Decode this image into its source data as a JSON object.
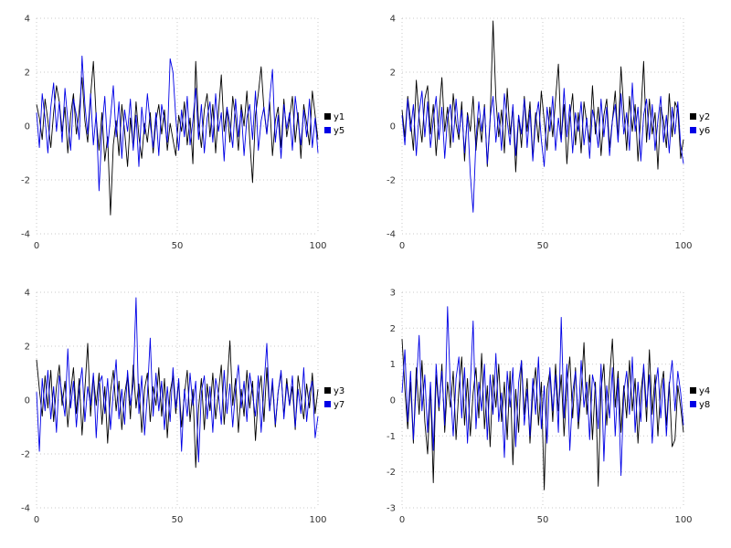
{
  "page": {
    "background": "#ffffff",
    "grid_color": "#c9c9c9",
    "tick_color": "#333333"
  },
  "chart_data": [
    {
      "type": "line",
      "xlim": [
        0,
        100
      ],
      "ylim": [
        -4,
        4
      ],
      "xticks": [
        0,
        50,
        100
      ],
      "yticks": [
        -4,
        -2,
        0,
        2,
        4
      ],
      "grid": true,
      "legend_position": "right",
      "series": [
        {
          "name": "y1",
          "color": "#000000",
          "values": [
            0.8,
            0.3,
            -0.5,
            1.0,
            0.2,
            -0.8,
            0.5,
            1.5,
            0.9,
            -0.2,
            0.7,
            -1.0,
            0.4,
            1.2,
            -0.3,
            0.6,
            1.8,
            0.2,
            -0.6,
            1.1,
            2.4,
            0.3,
            -0.9,
            0.5,
            -1.3,
            -0.4,
            -3.3,
            -0.7,
            0.2,
            -1.1,
            0.8,
            -0.2,
            -1.5,
            0.3,
            -0.8,
            0.9,
            -0.4,
            -1.2,
            0.1,
            -0.6,
            0.5,
            -1.0,
            0.2,
            0.8,
            -0.3,
            0.6,
            -0.9,
            0.1,
            -0.5,
            -1.1,
            0.4,
            -0.2,
            0.9,
            -0.7,
            0.3,
            -1.4,
            2.4,
            0.1,
            -0.8,
            0.6,
            1.2,
            -0.4,
            0.8,
            -1.0,
            0.5,
            1.9,
            -0.2,
            0.7,
            -0.6,
            1.1,
            0.3,
            -0.9,
            0.8,
            0.0,
            1.3,
            -0.5,
            -2.1,
            0.4,
            1.2,
            2.2,
            0.6,
            -0.3,
            0.9,
            -1.1,
            0.2,
            0.7,
            -0.8,
            1.0,
            -0.4,
            0.3,
            1.1,
            -0.6,
            0.5,
            -1.2,
            0.8,
            0.1,
            -0.7,
            1.3,
            0.4,
            -0.5
          ]
        },
        {
          "name": "y5",
          "color": "#0000e6",
          "values": [
            0.5,
            -0.8,
            1.2,
            0.3,
            -1.0,
            0.7,
            1.6,
            -0.2,
            0.9,
            -0.6,
            1.4,
            0.2,
            -0.9,
            1.0,
            0.4,
            -0.5,
            2.6,
            0.8,
            -0.3,
            1.2,
            -0.7,
            0.5,
            -2.4,
            -0.1,
            1.1,
            -0.8,
            0.3,
            1.5,
            -0.4,
            0.9,
            -1.2,
            0.6,
            -0.2,
            1.0,
            -0.9,
            0.4,
            -1.5,
            0.7,
            -0.3,
            1.2,
            0.1,
            -0.8,
            0.5,
            -1.1,
            0.8,
            0.2,
            -0.6,
            2.5,
            2.0,
            0.3,
            -0.9,
            0.6,
            -0.4,
            1.1,
            -0.7,
            0.2,
            1.4,
            -0.5,
            0.8,
            -1.0,
            0.3,
            0.9,
            -0.6,
            1.2,
            -0.2,
            0.5,
            -1.3,
            0.7,
            0.1,
            -0.8,
            1.0,
            -0.4,
            0.6,
            -1.1,
            0.3,
            0.8,
            -0.5,
            1.3,
            -0.9,
            0.2,
            0.7,
            -0.3,
            1.0,
            2.1,
            -0.6,
            0.4,
            -1.2,
            0.8,
            -0.1,
            0.5,
            -0.9,
            1.1,
            0.2,
            -0.7,
            0.6,
            -0.4,
            1.0,
            -0.8,
            0.3,
            -1.0
          ]
        }
      ]
    },
    {
      "type": "line",
      "xlim": [
        0,
        100
      ],
      "ylim": [
        -4,
        4
      ],
      "xticks": [
        0,
        50,
        100
      ],
      "yticks": [
        -4,
        -2,
        0,
        2,
        4
      ],
      "grid": true,
      "legend_position": "right",
      "series": [
        {
          "name": "y2",
          "color": "#000000",
          "values": [
            0.6,
            -0.4,
            1.1,
            0.2,
            -0.9,
            1.7,
            0.3,
            -0.6,
            1.0,
            1.5,
            -0.3,
            0.8,
            -1.1,
            0.4,
            1.8,
            -0.2,
            0.7,
            -0.8,
            1.2,
            0.1,
            -0.5,
            0.9,
            -1.3,
            0.5,
            -0.2,
            1.1,
            -0.9,
            0.3,
            -0.6,
            0.8,
            -1.5,
            0.2,
            3.9,
            1.0,
            -0.4,
            0.6,
            -1.0,
            1.4,
            -0.3,
            0.7,
            -1.7,
            0.4,
            -0.8,
            1.1,
            -0.2,
            0.9,
            -1.2,
            0.5,
            -0.6,
            1.3,
            0.2,
            -0.9,
            0.7,
            -0.4,
            1.0,
            2.3,
            -0.5,
            0.8,
            -1.4,
            0.3,
            1.2,
            -0.7,
            0.5,
            -1.0,
            0.9,
            0.1,
            -0.6,
            1.5,
            -0.3,
            0.7,
            -1.1,
            0.4,
            1.0,
            -0.8,
            0.2,
            1.3,
            -0.5,
            2.2,
            0.6,
            -0.9,
            1.1,
            -0.2,
            0.8,
            -1.3,
            0.4,
            2.4,
            -0.6,
            1.0,
            -0.3,
            0.5,
            -1.6,
            0.7,
            0.2,
            -0.8,
            1.2,
            -0.4,
            0.9,
            0.6,
            -1.2,
            -0.5
          ]
        },
        {
          "name": "y6",
          "color": "#0000e6",
          "values": [
            0.4,
            -0.7,
            1.0,
            -0.2,
            0.8,
            -1.1,
            0.5,
            1.3,
            -0.4,
            0.9,
            -0.8,
            0.2,
            1.1,
            -0.5,
            0.7,
            -1.2,
            0.3,
            0.8,
            -0.6,
            1.0,
            -0.3,
            0.6,
            -1.0,
            0.4,
            -1.8,
            -3.2,
            -0.5,
            0.9,
            -0.2,
            0.7,
            -1.4,
            0.3,
            1.1,
            -0.6,
            0.5,
            -0.9,
            1.2,
            0.2,
            -0.7,
            0.8,
            -1.1,
            0.4,
            -0.3,
            1.0,
            -0.8,
            0.6,
            -1.3,
            0.2,
            0.9,
            -0.5,
            -1.5,
            0.7,
            -0.2,
            1.1,
            -0.9,
            0.3,
            -0.6,
            1.4,
            -0.4,
            0.8,
            -1.0,
            0.5,
            -0.2,
            0.9,
            -0.7,
            0.3,
            -1.2,
            0.6,
            0.1,
            -0.8,
            1.0,
            -0.4,
            0.7,
            -1.1,
            0.2,
            0.8,
            -0.6,
            1.2,
            -0.3,
            0.5,
            -0.9,
            1.6,
            -0.2,
            0.7,
            -1.3,
            0.4,
            1.0,
            -0.5,
            0.8,
            -0.9,
            0.2,
            1.1,
            -0.6,
            0.4,
            -1.0,
            0.7,
            -0.3,
            0.9,
            -0.7,
            -1.4
          ]
        }
      ]
    },
    {
      "type": "line",
      "xlim": [
        0,
        100
      ],
      "ylim": [
        -4,
        4
      ],
      "xticks": [
        0,
        50,
        100
      ],
      "yticks": [
        -4,
        -2,
        0,
        2,
        4
      ],
      "grid": true,
      "legend_position": "right",
      "series": [
        {
          "name": "y3",
          "color": "#000000",
          "values": [
            1.5,
            0.4,
            -0.6,
            0.9,
            -0.3,
            1.1,
            -0.8,
            0.5,
            1.3,
            -0.2,
            0.7,
            -1.0,
            0.3,
            1.2,
            -0.5,
            0.8,
            -1.3,
            0.4,
            2.1,
            -0.6,
            0.9,
            -0.2,
            1.0,
            -0.9,
            0.5,
            -1.6,
            0.3,
            1.1,
            -0.4,
            0.7,
            -1.1,
            0.2,
            0.9,
            -0.7,
            1.3,
            -0.3,
            0.6,
            -1.2,
            0.4,
            1.0,
            -0.8,
            0.5,
            -0.2,
            1.2,
            -0.6,
            0.8,
            -1.4,
            0.3,
            0.9,
            -0.5,
            0.7,
            -1.0,
            0.2,
            1.1,
            -0.8,
            0.4,
            -2.5,
            -0.3,
            0.8,
            -1.1,
            0.6,
            -0.4,
            1.0,
            -0.7,
            0.3,
            1.3,
            -0.9,
            0.5,
            2.2,
            -0.2,
            0.8,
            -1.2,
            0.4,
            -0.6,
            1.1,
            -0.3,
            0.7,
            -1.5,
            0.2,
            0.9,
            -0.8,
            1.2,
            -0.4,
            0.6,
            -1.0,
            0.3,
            1.0,
            -0.6,
            0.8,
            -0.2,
            0.5,
            -1.1,
            0.9,
            0.1,
            -0.7,
            0.6,
            -0.3,
            1.0,
            -0.5,
            0.4
          ]
        },
        {
          "name": "y7",
          "color": "#0000e6",
          "values": [
            0.3,
            -1.9,
            0.8,
            -0.4,
            1.1,
            -0.7,
            0.5,
            -1.2,
            0.9,
            0.2,
            -0.6,
            1.9,
            -0.3,
            0.7,
            -1.0,
            0.4,
            1.2,
            -0.8,
            0.5,
            -0.2,
            1.0,
            -1.4,
            0.6,
            0.9,
            -0.5,
            0.8,
            -1.1,
            0.3,
            1.5,
            -0.7,
            0.4,
            -0.9,
            1.1,
            -0.2,
            0.6,
            3.8,
            -0.5,
            0.9,
            -1.3,
            0.2,
            2.3,
            -0.6,
            1.0,
            -0.4,
            0.7,
            -1.1,
            0.5,
            -0.8,
            1.2,
            -0.3,
            0.8,
            -1.9,
            0.4,
            -0.6,
            1.0,
            -0.2,
            0.7,
            -2.3,
            0.3,
            0.9,
            -0.7,
            0.5,
            -1.2,
            0.8,
            0.2,
            -0.9,
            1.1,
            -0.5,
            0.6,
            -1.0,
            0.4,
            1.3,
            -0.3,
            0.7,
            -0.8,
            1.0,
            0.2,
            -0.6,
            0.9,
            -1.2,
            0.5,
            2.1,
            -0.4,
            0.8,
            -0.9,
            0.3,
            1.1,
            -0.7,
            0.6,
            -0.2,
            0.9,
            -1.0,
            0.4,
            -0.5,
            1.2,
            -0.8,
            0.3,
            0.7,
            -1.4,
            -0.6
          ]
        }
      ]
    },
    {
      "type": "line",
      "xlim": [
        0,
        100
      ],
      "ylim": [
        -3,
        3
      ],
      "xticks": [
        0,
        50,
        100
      ],
      "yticks": [
        -3,
        -2,
        -1,
        0,
        1,
        2,
        3
      ],
      "grid": true,
      "legend_position": "right",
      "series": [
        {
          "name": "y4",
          "color": "#000000",
          "values": [
            1.7,
            0.3,
            -0.8,
            0.5,
            -1.2,
            0.9,
            -0.4,
            1.1,
            -0.6,
            -1.5,
            0.4,
            -2.3,
            0.7,
            -0.3,
            1.0,
            -0.9,
            0.5,
            -0.2,
            0.8,
            -1.1,
            0.3,
            1.2,
            -0.7,
            0.6,
            -1.0,
            0.2,
            0.9,
            -0.5,
            1.3,
            -0.8,
            0.4,
            -1.3,
            0.7,
            -0.2,
            1.0,
            -0.6,
            0.5,
            -1.1,
            0.8,
            -1.8,
            0.3,
            -0.9,
            1.1,
            -0.4,
            0.6,
            -1.2,
            0.2,
            0.9,
            -0.7,
            0.5,
            -2.5,
            0.3,
            0.8,
            -0.6,
            1.0,
            -0.3,
            0.7,
            -1.0,
            0.4,
            1.2,
            -0.5,
            0.9,
            -0.8,
            0.2,
            1.6,
            -0.4,
            0.7,
            -1.1,
            0.5,
            -2.4,
            0.3,
            1.0,
            -0.7,
            0.6,
            1.7,
            -0.2,
            0.8,
            -0.9,
            0.4,
            -0.5,
            1.1,
            -0.3,
            0.6,
            -1.2,
            0.2,
            0.9,
            -0.6,
            1.4,
            -0.4,
            0.7,
            -1.0,
            0.3,
            0.8,
            -0.7,
            0.5,
            -1.3,
            -1.1,
            0.4,
            -0.2,
            -0.9
          ]
        },
        {
          "name": "y8",
          "color": "#0000e6",
          "values": [
            0.2,
            1.4,
            -0.6,
            0.8,
            -1.1,
            0.4,
            1.8,
            -0.3,
            0.7,
            -0.9,
            0.5,
            -1.4,
            1.0,
            -0.2,
            0.8,
            -0.7,
            2.6,
            0.3,
            -1.0,
            0.6,
            1.2,
            -0.5,
            0.9,
            -1.2,
            0.4,
            2.2,
            -0.8,
            0.5,
            -0.3,
            1.0,
            -1.1,
            0.7,
            -0.4,
            1.3,
            -0.6,
            0.2,
            -1.6,
            0.8,
            -0.2,
            0.9,
            -1.3,
            0.5,
            1.1,
            -0.7,
            0.3,
            -1.0,
            0.6,
            -0.4,
            1.2,
            -0.8,
            0.4,
            -1.2,
            0.9,
            -0.3,
            0.7,
            -0.9,
            2.3,
            -0.5,
            1.0,
            -1.4,
            0.2,
            0.8,
            -0.6,
            1.1,
            -0.2,
            0.5,
            -1.1,
            0.7,
            0.3,
            -0.8,
            1.0,
            -1.7,
            0.4,
            -0.5,
            0.9,
            -1.0,
            0.6,
            -2.1,
            0.2,
            0.8,
            -0.4,
            1.2,
            -0.9,
            0.5,
            -0.6,
            1.0,
            -0.2,
            0.7,
            -1.2,
            0.3,
            0.9,
            -0.5,
            0.6,
            -1.0,
            0.4,
            1.1,
            -0.3,
            0.8,
            0.2,
            -0.7
          ]
        }
      ]
    }
  ]
}
